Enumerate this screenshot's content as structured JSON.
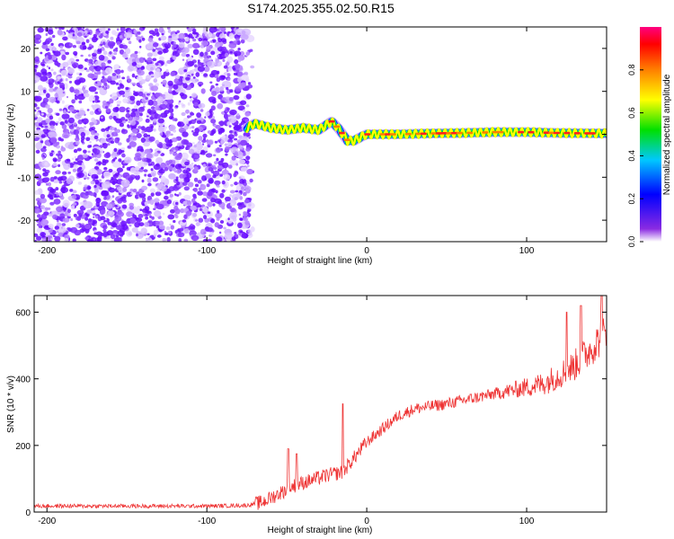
{
  "title": "S174.2025.355.02.50.R15",
  "chart_data": [
    {
      "type": "heatmap",
      "name": "spectrogram",
      "xlabel": "Height of straight line (km)",
      "ylabel": "Frequency (Hz)",
      "xlim": [
        -208,
        150
      ],
      "ylim": [
        -25,
        25
      ],
      "xticks": [
        -200,
        -100,
        0,
        100
      ],
      "yticks": [
        -20,
        -10,
        0,
        10,
        20
      ],
      "noise_region_km": [
        -208,
        -73
      ],
      "tone_track": {
        "x": [
          -75,
          -70,
          -60,
          -50,
          -40,
          -30,
          -22,
          -18,
          -12,
          -8,
          -3,
          0,
          10,
          20,
          40,
          60,
          80,
          100,
          120,
          150
        ],
        "freq_hz": [
          1.5,
          2.5,
          1.5,
          1.0,
          1.5,
          1.0,
          3.0,
          1.5,
          -1.5,
          -1.5,
          -0.5,
          0.0,
          0.0,
          0.0,
          0.2,
          0.3,
          0.5,
          0.5,
          0.3,
          0.2
        ]
      },
      "colorbar": {
        "label": "Normalized spectral amplitude",
        "range": [
          0.0,
          1.0
        ],
        "ticks": [
          0.0,
          0.2,
          0.4,
          0.6,
          0.8
        ],
        "tick_labels": [
          "0.0",
          "0.2",
          "0.4",
          "0.6",
          "0.8"
        ],
        "colors": [
          "#ffffff",
          "#8a2be2",
          "#0000ff",
          "#00c8ff",
          "#00e000",
          "#ffff00",
          "#ff8000",
          "#ff0000",
          "#ff0080"
        ]
      }
    },
    {
      "type": "line",
      "name": "snr",
      "xlabel": "Height of straight line (km)",
      "ylabel": "SNR (10 * v/v)",
      "xlim": [
        -208,
        150
      ],
      "ylim": [
        0,
        650
      ],
      "xticks": [
        -200,
        -100,
        0,
        100
      ],
      "yticks": [
        0,
        200,
        400,
        600
      ],
      "color": "#ee3333",
      "series": {
        "x": [
          -208,
          -150,
          -100,
          -75,
          -65,
          -55,
          -45,
          -35,
          -25,
          -15,
          -10,
          -5,
          0,
          10,
          20,
          30,
          50,
          70,
          90,
          100,
          110,
          120,
          130,
          140,
          150
        ],
        "y": [
          18,
          18,
          18,
          20,
          30,
          55,
          80,
          95,
          110,
          120,
          150,
          180,
          210,
          250,
          290,
          310,
          325,
          345,
          365,
          375,
          385,
          410,
          440,
          490,
          540
        ]
      },
      "spikes": [
        {
          "x": -49,
          "y": 190
        },
        {
          "x": -44,
          "y": 175
        },
        {
          "x": -15,
          "y": 325
        },
        {
          "x": 125,
          "y": 600
        },
        {
          "x": 134,
          "y": 620
        },
        {
          "x": 147,
          "y": 650
        }
      ]
    }
  ]
}
